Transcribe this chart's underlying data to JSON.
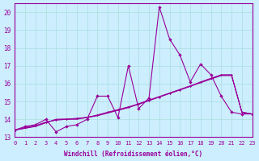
{
  "background_color": "#cceeff",
  "grid_color": "#aadddd",
  "line_color": "#990099",
  "xlabel": "Windchill (Refroidissement éolien,°C)",
  "xlim": [
    0,
    23
  ],
  "ylim": [
    13,
    20.5
  ],
  "yticks": [
    13,
    14,
    15,
    16,
    17,
    18,
    19,
    20
  ],
  "xticks": [
    0,
    1,
    2,
    3,
    4,
    5,
    6,
    7,
    8,
    9,
    10,
    11,
    12,
    13,
    14,
    15,
    16,
    17,
    18,
    19,
    20,
    21,
    22,
    23
  ],
  "series1": {
    "x": [
      0,
      1,
      2,
      3,
      4,
      5,
      6,
      7,
      8,
      9,
      10,
      11,
      12,
      13,
      14,
      15,
      16,
      17,
      18,
      19,
      20,
      21,
      22,
      23
    ],
    "y": [
      13.4,
      13.6,
      13.7,
      14.0,
      13.3,
      13.6,
      13.7,
      14.0,
      15.3,
      15.3,
      14.1,
      17.0,
      14.6,
      15.2,
      20.3,
      18.5,
      17.6,
      16.1,
      17.1,
      16.5,
      15.3,
      14.4,
      14.3,
      14.3
    ]
  },
  "series2": {
    "x": [
      0,
      1,
      2,
      3,
      4,
      5,
      6,
      7,
      8,
      9,
      10,
      11,
      12,
      13,
      14,
      15,
      16,
      17,
      18,
      19,
      20,
      21,
      22,
      23
    ],
    "y": [
      13.4,
      13.55,
      13.65,
      13.85,
      13.95,
      14.0,
      14.05,
      14.1,
      14.25,
      14.4,
      14.55,
      14.7,
      14.85,
      15.05,
      15.25,
      15.45,
      15.65,
      15.85,
      16.1,
      16.3,
      16.5,
      16.5,
      14.4,
      14.3
    ]
  },
  "series3": {
    "x": [
      0,
      1,
      2,
      3,
      4,
      5,
      6,
      7,
      8,
      9,
      10,
      11,
      12,
      13,
      14,
      15,
      16,
      17,
      18,
      19,
      20,
      21,
      22,
      23
    ],
    "y": [
      13.4,
      13.5,
      13.6,
      13.8,
      14.0,
      14.0,
      14.0,
      14.1,
      14.2,
      14.35,
      14.5,
      14.65,
      14.85,
      15.05,
      15.25,
      15.45,
      15.65,
      15.85,
      16.05,
      16.25,
      16.45,
      16.45,
      14.4,
      14.3
    ]
  },
  "series4": {
    "x": [
      0,
      1,
      2,
      3,
      4,
      5,
      6,
      7,
      8,
      9,
      10,
      11,
      12,
      13,
      14,
      15,
      16,
      17,
      18,
      19,
      20,
      21,
      22,
      23
    ],
    "y": [
      13.4,
      13.5,
      13.62,
      13.82,
      14.0,
      14.02,
      14.05,
      14.12,
      14.22,
      14.38,
      14.52,
      14.68,
      14.88,
      15.08,
      15.28,
      15.48,
      15.68,
      15.88,
      16.08,
      16.28,
      16.48,
      16.48,
      14.4,
      14.3
    ]
  }
}
